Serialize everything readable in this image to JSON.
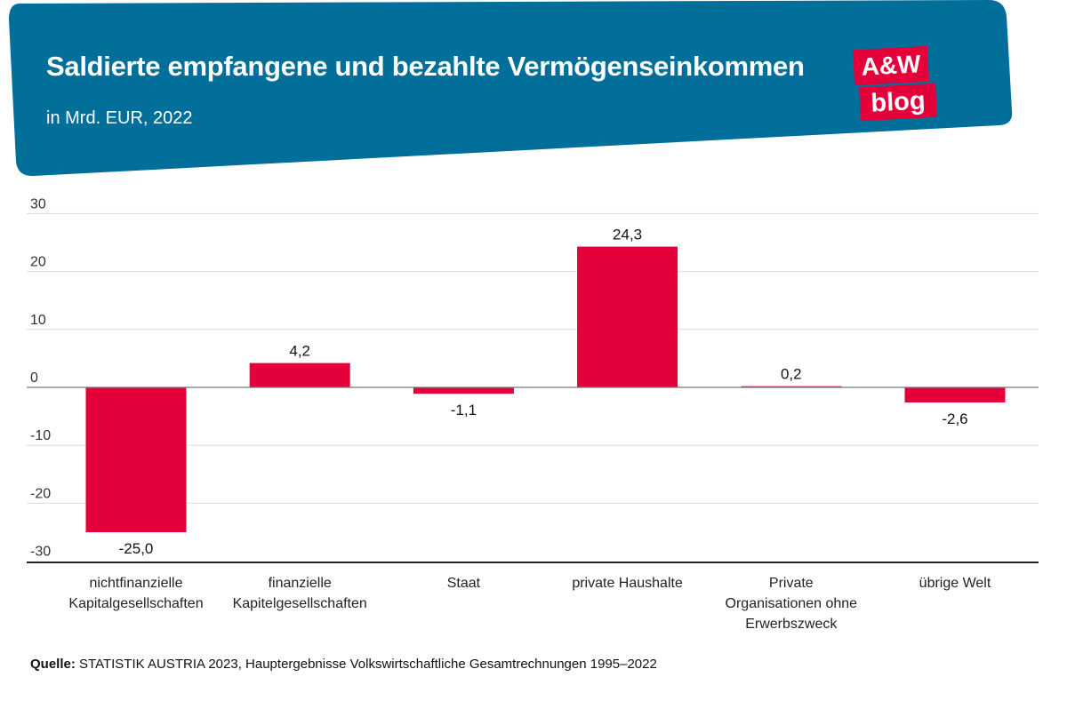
{
  "header": {
    "title": "Saldierte empfangene und bezahlte Vermögenseinkommen",
    "subtitle": "in Mrd. EUR, 2022",
    "logo_top": "A&W",
    "logo_bottom": "blog"
  },
  "colors": {
    "header_band": "#026e9a",
    "bar": "#e4003a",
    "logo_bg": "#e4003a"
  },
  "chart_data": {
    "type": "bar",
    "title": "Saldierte empfangene und bezahlte Vermögenseinkommen",
    "subtitle": "in Mrd. EUR, 2022",
    "categories": [
      [
        "nichtfinanzielle",
        "Kapitalgesellschaften"
      ],
      [
        "finanzielle",
        "Kapitelgesellschaften"
      ],
      [
        "Staat"
      ],
      [
        "private Haushalte"
      ],
      [
        "Private",
        "Organisationen ohne",
        "Erwerbszweck"
      ],
      [
        "übrige Welt"
      ]
    ],
    "values": [
      -25.0,
      4.2,
      -1.1,
      24.3,
      0.2,
      -2.6
    ],
    "value_labels": [
      "-25,0",
      "4,2",
      "-1,1",
      "24,3",
      "0,2",
      "-2,6"
    ],
    "yticks": [
      30,
      20,
      10,
      0,
      -10,
      -20,
      -30
    ],
    "ytick_labels": [
      "30",
      "20",
      "10",
      "0",
      "-10",
      "-20",
      "-30"
    ],
    "ylim": [
      -30,
      30
    ],
    "xlabel": "",
    "ylabel": "",
    "grid": true
  },
  "source": {
    "label": "Quelle:",
    "text": " STATISTIK AUSTRIA 2023, Hauptergebnisse Volkswirtschaftliche Gesamtrechnungen 1995–2022"
  }
}
